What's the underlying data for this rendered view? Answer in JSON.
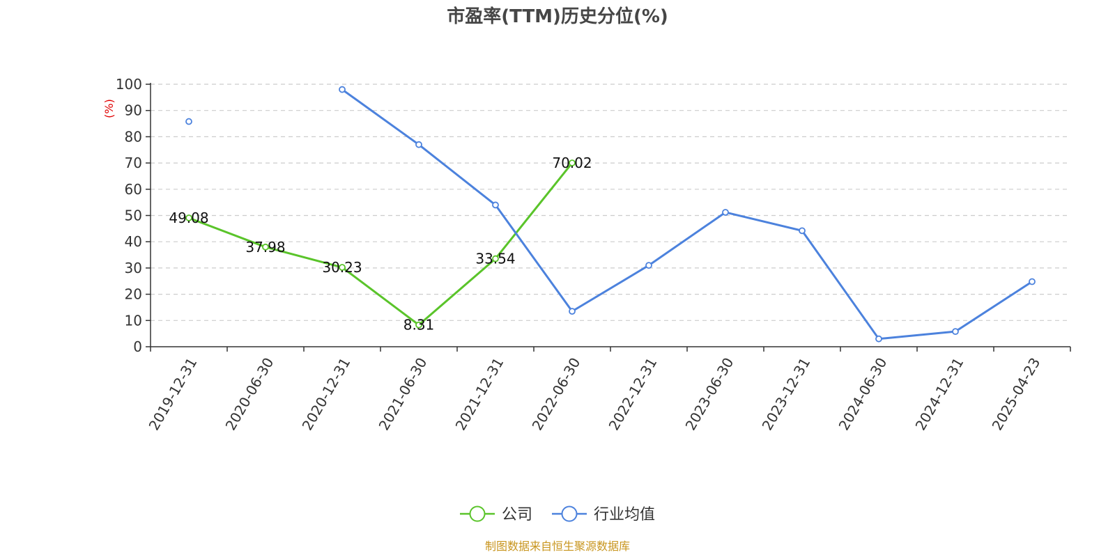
{
  "chart_data": {
    "type": "line",
    "title": "市盈率(TTM)历史分位(%)",
    "ylabel": "(%)",
    "categories": [
      "2019-12-31",
      "2020-06-30",
      "2020-12-31",
      "2021-06-30",
      "2021-12-31",
      "2022-06-30",
      "2022-12-31",
      "2023-06-30",
      "2023-12-31",
      "2024-06-30",
      "2024-12-31",
      "2025-04-23"
    ],
    "ylim": [
      0,
      100
    ],
    "yticks": [
      0,
      10,
      20,
      30,
      40,
      50,
      60,
      70,
      80,
      90,
      100
    ],
    "grid": true,
    "legend_position": "bottom-center",
    "series": [
      {
        "name": "公司",
        "color": "#5ac42a",
        "values": [
          49.08,
          37.98,
          30.23,
          8.31,
          33.54,
          70.02,
          null,
          null,
          null,
          null,
          null,
          null
        ],
        "labels": [
          "49.08",
          "37.98",
          "30.23",
          "8.31",
          "33.54",
          "70.02"
        ]
      },
      {
        "name": "行业均值",
        "color": "#4c82dd",
        "values": [
          85.8,
          null,
          98.0,
          77.0,
          54.0,
          13.5,
          31.0,
          51.2,
          44.2,
          3.0,
          5.8,
          24.8
        ]
      }
    ]
  },
  "source": "制图数据来自恒生聚源数据库"
}
